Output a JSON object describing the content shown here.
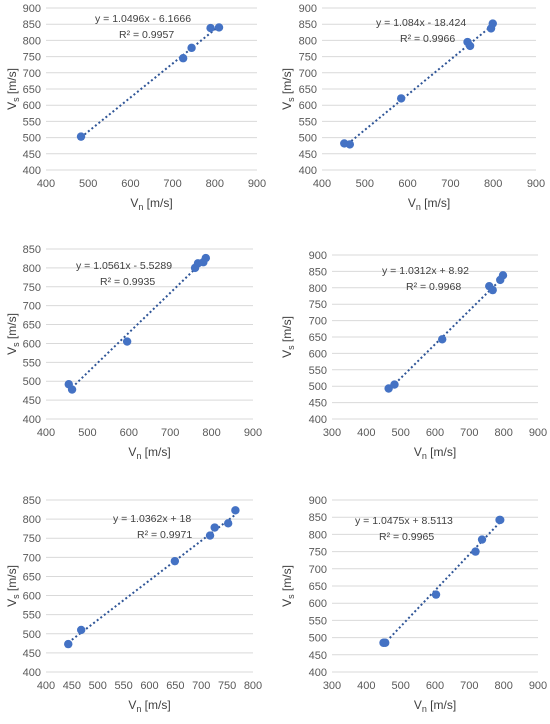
{
  "chart_data": [
    {
      "type": "scatter",
      "xlabel_main": "V",
      "xlabel_sub": "n",
      "xlabel_unit": " [m/s]",
      "ylabel_main": "V",
      "ylabel_sub": "s",
      "ylabel_unit": " [m/s]",
      "xlim": [
        400,
        900
      ],
      "ylim": [
        400,
        900
      ],
      "xticks": [
        "400",
        "500",
        "600",
        "700",
        "800",
        "900"
      ],
      "yticks": [
        "400",
        "450",
        "500",
        "550",
        "600",
        "650",
        "700",
        "750",
        "800",
        "850",
        "900"
      ],
      "equation": "y = 1.0496x - 6.1666",
      "r2": "R² = 0.9957",
      "x": [
        483,
        725,
        745,
        790,
        810
      ],
      "y": [
        503,
        745,
        777,
        838,
        840
      ],
      "trend_x": [
        483,
        810
      ],
      "trend_y": [
        500.8,
        844
      ]
    },
    {
      "type": "scatter",
      "xlabel_main": "V",
      "xlabel_sub": "n",
      "xlabel_unit": " [m/s]",
      "ylabel_main": "V",
      "ylabel_sub": "s",
      "ylabel_unit": " [m/s]",
      "xlim": [
        400,
        900
      ],
      "ylim": [
        400,
        900
      ],
      "xticks": [
        "400",
        "500",
        "600",
        "700",
        "800",
        "900"
      ],
      "yticks": [
        "400",
        "450",
        "500",
        "550",
        "600",
        "650",
        "700",
        "750",
        "800",
        "850",
        "900"
      ],
      "equation": "y = 1.084x - 18.424",
      "r2": "R² = 0.9966",
      "x": [
        452,
        465,
        585,
        740,
        746,
        795,
        799
      ],
      "y": [
        482,
        479,
        621,
        795,
        783,
        837,
        852
      ],
      "trend_x": [
        452,
        799
      ],
      "trend_y": [
        471.6,
        847.7
      ]
    },
    {
      "type": "scatter",
      "xlabel_main": "V",
      "xlabel_sub": "n",
      "xlabel_unit": " [m/s]",
      "ylabel_main": "V",
      "ylabel_sub": "s",
      "ylabel_unit": " [m/s]",
      "xlim": [
        400,
        900
      ],
      "ylim": [
        400,
        850
      ],
      "xticks": [
        "400",
        "500",
        "600",
        "700",
        "800",
        "900"
      ],
      "yticks": [
        "400",
        "450",
        "500",
        "550",
        "600",
        "650",
        "700",
        "750",
        "800",
        "850"
      ],
      "equation": "y = 1.0561x - 5.5289",
      "r2": "R² = 0.9935",
      "x": [
        455,
        463,
        596,
        760,
        767,
        780,
        786
      ],
      "y": [
        492,
        478,
        605,
        800,
        812,
        815,
        826
      ],
      "trend_x": [
        455,
        786
      ],
      "trend_y": [
        475,
        824.6
      ]
    },
    {
      "type": "scatter",
      "xlabel_main": "V",
      "xlabel_sub": "n",
      "xlabel_unit": " [m/s]",
      "ylabel_main": "V",
      "ylabel_sub": "s",
      "ylabel_unit": " [m/s]",
      "xlim": [
        300,
        900
      ],
      "ylim": [
        400,
        900
      ],
      "xticks": [
        "300",
        "400",
        "500",
        "600",
        "700",
        "800",
        "900"
      ],
      "yticks": [
        "400",
        "450",
        "500",
        "550",
        "600",
        "650",
        "700",
        "750",
        "800",
        "850",
        "900"
      ],
      "equation": "y = 1.0312x + 8.92",
      "r2": "R² = 0.9968",
      "x": [
        465,
        482,
        621,
        758,
        768,
        790,
        798
      ],
      "y": [
        493,
        505,
        643,
        805,
        793,
        824,
        838
      ],
      "trend_x": [
        465,
        798
      ],
      "trend_y": [
        488.4,
        831.8
      ]
    },
    {
      "type": "scatter",
      "xlabel_main": "V",
      "xlabel_sub": "n",
      "xlabel_unit": " [m/s]",
      "ylabel_main": "V",
      "ylabel_sub": "s",
      "ylabel_unit": " [m/s]",
      "xlim": [
        400,
        800
      ],
      "ylim": [
        400,
        850
      ],
      "xticks": [
        "400",
        "450",
        "500",
        "550",
        "600",
        "650",
        "700",
        "750",
        "800"
      ],
      "yticks": [
        "400",
        "450",
        "500",
        "550",
        "600",
        "650",
        "700",
        "750",
        "800",
        "850"
      ],
      "equation": "y = 1.0362x + 18",
      "r2": "R² = 0.9971",
      "x": [
        443,
        468,
        649,
        717,
        726,
        752,
        766
      ],
      "y": [
        473,
        510,
        690,
        757,
        778,
        789,
        823
      ],
      "trend_x": [
        443,
        766
      ],
      "trend_y": [
        477,
        811.7
      ]
    },
    {
      "type": "scatter",
      "xlabel_main": "V",
      "xlabel_sub": "n",
      "xlabel_unit": " [m/s]",
      "ylabel_main": "V",
      "ylabel_sub": "s",
      "ylabel_unit": " [m/s]",
      "xlim": [
        300,
        900
      ],
      "ylim": [
        400,
        900
      ],
      "xticks": [
        "300",
        "400",
        "500",
        "600",
        "700",
        "800",
        "900"
      ],
      "yticks": [
        "400",
        "450",
        "500",
        "550",
        "600",
        "650",
        "700",
        "750",
        "800",
        "850",
        "900"
      ],
      "equation": "y = 1.0475x + 8.5113",
      "r2": "R² = 0.9965",
      "x": [
        450,
        455,
        603,
        718,
        737,
        788,
        790
      ],
      "y": [
        485,
        485,
        625,
        750,
        785,
        842,
        842
      ],
      "trend_x": [
        450,
        790
      ],
      "trend_y": [
        479.9,
        836
      ]
    }
  ]
}
